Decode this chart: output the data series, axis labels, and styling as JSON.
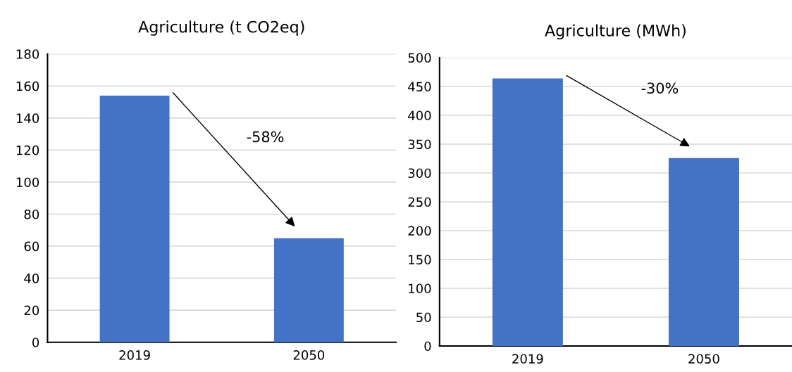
{
  "chart_data": [
    {
      "type": "bar",
      "title": "Agriculture (t CO2eq)",
      "categories": [
        "2019",
        "2050"
      ],
      "values": [
        154,
        65
      ],
      "color": "#4472c4",
      "ylim": [
        0,
        180
      ],
      "yticks": [
        0,
        20,
        40,
        60,
        80,
        100,
        120,
        140,
        160,
        180
      ],
      "grid": "y",
      "annotations": [
        "-58%"
      ]
    },
    {
      "type": "bar",
      "title": "Agriculture (MWh)",
      "categories": [
        "2019",
        "2050"
      ],
      "values": [
        464,
        326
      ],
      "color": "#4472c4",
      "ylim": [
        0,
        500
      ],
      "yticks": [
        0,
        50,
        100,
        150,
        200,
        250,
        300,
        350,
        400,
        450,
        500
      ],
      "grid": "y",
      "annotations": [
        "-30%"
      ]
    }
  ]
}
